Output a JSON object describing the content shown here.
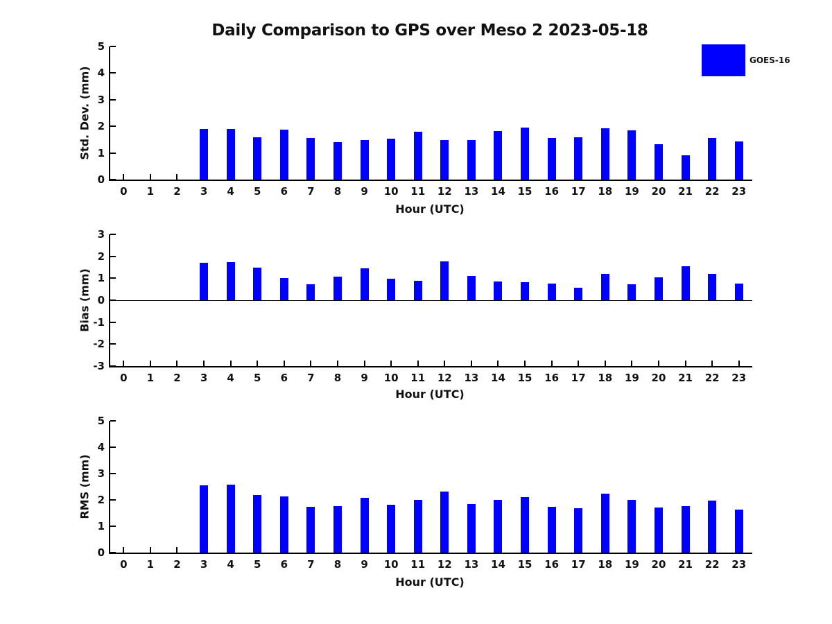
{
  "title": "Daily Comparison to GPS over Meso 2 2023-05-18",
  "legend": {
    "label": "GOES-16",
    "color": "#0000ff",
    "position": "top-right"
  },
  "colors": {
    "bar": "#0000ff",
    "axis": "#000000",
    "text": "#111111",
    "background": "#ffffff"
  },
  "chart_data": [
    {
      "type": "bar",
      "name": "std-dev",
      "ylabel": "Std. Dev. (mm)",
      "xlabel": "Hour (UTC)",
      "categories": [
        "0",
        "1",
        "2",
        "3",
        "4",
        "5",
        "6",
        "7",
        "8",
        "9",
        "10",
        "11",
        "12",
        "13",
        "14",
        "15",
        "16",
        "17",
        "18",
        "19",
        "20",
        "21",
        "22",
        "23"
      ],
      "series": [
        {
          "name": "GOES-16",
          "values": [
            null,
            null,
            null,
            1.91,
            1.91,
            1.6,
            1.88,
            1.57,
            1.41,
            1.48,
            1.54,
            1.8,
            1.49,
            1.49,
            1.83,
            1.95,
            1.57,
            1.6,
            1.93,
            1.85,
            1.33,
            0.9,
            1.57,
            1.43
          ]
        }
      ],
      "ylim": [
        0,
        5
      ],
      "yticks": [
        0,
        1,
        2,
        3,
        4,
        5
      ],
      "zero_line": false,
      "grid": false
    },
    {
      "type": "bar",
      "name": "bias",
      "ylabel": "Bias (mm)",
      "xlabel": "Hour (UTC)",
      "categories": [
        "0",
        "1",
        "2",
        "3",
        "4",
        "5",
        "6",
        "7",
        "8",
        "9",
        "10",
        "11",
        "12",
        "13",
        "14",
        "15",
        "16",
        "17",
        "18",
        "19",
        "20",
        "21",
        "22",
        "23"
      ],
      "series": [
        {
          "name": "GOES-16",
          "values": [
            null,
            null,
            null,
            1.7,
            1.73,
            1.48,
            1.01,
            0.74,
            1.07,
            1.45,
            0.97,
            0.87,
            1.76,
            1.1,
            0.84,
            0.83,
            0.76,
            0.58,
            1.21,
            0.73,
            1.04,
            1.55,
            1.19,
            0.76
          ]
        }
      ],
      "ylim": [
        -3,
        3
      ],
      "yticks": [
        3,
        2,
        1,
        0,
        -1,
        -2,
        -3
      ],
      "zero_line": true,
      "grid": false
    },
    {
      "type": "bar",
      "name": "rms",
      "ylabel": "RMS (mm)",
      "xlabel": "Hour (UTC)",
      "categories": [
        "0",
        "1",
        "2",
        "3",
        "4",
        "5",
        "6",
        "7",
        "8",
        "9",
        "10",
        "11",
        "12",
        "13",
        "14",
        "15",
        "16",
        "17",
        "18",
        "19",
        "20",
        "21",
        "22",
        "23"
      ],
      "series": [
        {
          "name": "GOES-16",
          "values": [
            null,
            null,
            null,
            2.54,
            2.57,
            2.19,
            2.13,
            1.74,
            1.76,
            2.08,
            1.82,
            2.0,
            2.31,
            1.84,
            2.0,
            2.1,
            1.74,
            1.68,
            2.25,
            2.0,
            1.71,
            1.76,
            1.97,
            1.62
          ]
        }
      ],
      "ylim": [
        0,
        5
      ],
      "yticks": [
        0,
        1,
        2,
        3,
        4,
        5
      ],
      "zero_line": false,
      "grid": false
    }
  ]
}
